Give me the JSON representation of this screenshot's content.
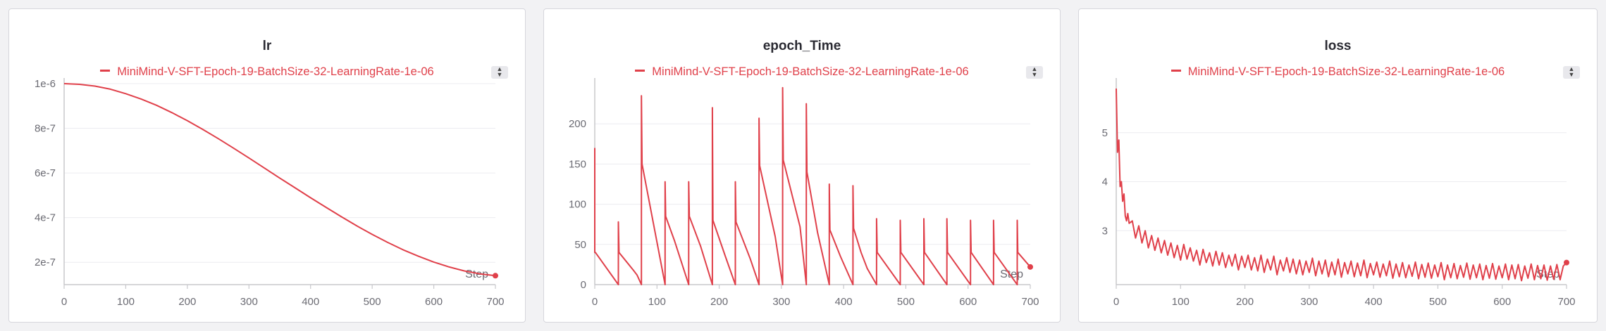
{
  "colors": {
    "series": "#e0404a",
    "grid": "#ececf0",
    "axis": "#c8c8cc",
    "tick_text": "#6b6b73",
    "background": "#f2f2f4"
  },
  "icons": {
    "legend_toggle": "sort-up-down-icon"
  },
  "chart_data": [
    {
      "type": "line",
      "title": "lr",
      "legend": "MiniMind-V-SFT-Epoch-19-BatchSize-32-LearningRate-1e-06",
      "xlabel": "Step",
      "xlim": [
        0,
        700
      ],
      "ylim": [
        1e-07,
        1e-06
      ],
      "xticks": [
        0,
        100,
        200,
        300,
        400,
        500,
        600,
        700
      ],
      "yticks": [
        2e-07,
        4e-07,
        6e-07,
        8e-07,
        1e-06
      ],
      "ytick_labels": [
        "2e-7",
        "4e-7",
        "6e-7",
        "8e-7",
        "1e-6"
      ],
      "series": [
        {
          "name": "MiniMind-V-SFT-Epoch-19-BatchSize-32-LearningRate-1e-06",
          "x": [
            0,
            25,
            50,
            75,
            100,
            125,
            150,
            175,
            200,
            225,
            250,
            275,
            300,
            325,
            350,
            375,
            400,
            425,
            450,
            475,
            500,
            525,
            550,
            575,
            600,
            625,
            650,
            675,
            700
          ],
          "y": [
            1e-06,
            9.97e-07,
            9.89e-07,
            9.75e-07,
            9.55e-07,
            9.31e-07,
            9.03e-07,
            8.7e-07,
            8.34e-07,
            7.95e-07,
            7.54e-07,
            7.11e-07,
            6.67e-07,
            6.22e-07,
            5.77e-07,
            5.33e-07,
            4.89e-07,
            4.46e-07,
            4.04e-07,
            3.63e-07,
            3.25e-07,
            2.89e-07,
            2.56e-07,
            2.27e-07,
            2.01e-07,
            1.79e-07,
            1.61e-07,
            1.48e-07,
            1.4e-07
          ]
        }
      ]
    },
    {
      "type": "line",
      "title": "epoch_Time",
      "legend": "MiniMind-V-SFT-Epoch-19-BatchSize-32-LearningRate-1e-06",
      "xlabel": "Step",
      "xlim": [
        0,
        700
      ],
      "ylim": [
        0,
        250
      ],
      "xticks": [
        0,
        100,
        200,
        300,
        400,
        500,
        600,
        700
      ],
      "yticks": [
        0,
        50,
        100,
        150,
        200
      ],
      "ytick_labels": [
        "0",
        "50",
        "100",
        "150",
        "200"
      ],
      "series": [
        {
          "name": "MiniMind-V-SFT-Epoch-19-BatchSize-32-LearningRate-1e-06",
          "x": [
            0,
            0,
            1,
            38,
            38,
            39,
            62,
            68,
            75,
            75,
            76,
            113,
            113,
            114,
            128,
            151,
            151,
            152,
            170,
            189,
            189,
            190,
            210,
            226,
            226,
            227,
            250,
            264,
            264,
            265,
            290,
            302,
            302,
            303,
            330,
            340,
            340,
            341,
            358,
            377,
            377,
            378,
            395,
            415,
            415,
            416,
            428,
            438,
            453,
            453,
            454,
            491,
            491,
            492,
            529,
            529,
            530,
            566,
            566,
            567,
            604,
            604,
            605,
            641,
            641,
            642,
            679,
            679,
            680,
            700
          ],
          "y": [
            170,
            40,
            40,
            0,
            78,
            40,
            18,
            12,
            0,
            235,
            150,
            0,
            128,
            85,
            55,
            0,
            128,
            85,
            48,
            0,
            220,
            80,
            35,
            0,
            128,
            78,
            32,
            0,
            207,
            148,
            60,
            0,
            245,
            155,
            72,
            0,
            225,
            140,
            65,
            0,
            125,
            68,
            35,
            0,
            123,
            70,
            40,
            20,
            0,
            82,
            40,
            0,
            80,
            40,
            0,
            82,
            40,
            0,
            82,
            40,
            0,
            80,
            40,
            0,
            80,
            40,
            0,
            80,
            40,
            22
          ]
        }
      ]
    },
    {
      "type": "line",
      "title": "loss",
      "legend": "MiniMind-V-SFT-Epoch-19-BatchSize-32-LearningRate-1e-06",
      "xlabel": "Step",
      "xlim": [
        0,
        700
      ],
      "ylim": [
        1.9,
        6.0
      ],
      "xticks": [
        0,
        100,
        200,
        300,
        400,
        500,
        600,
        700
      ],
      "yticks": [
        3,
        4,
        5
      ],
      "ytick_labels": [
        "3",
        "4",
        "5"
      ],
      "series": [
        {
          "name": "MiniMind-V-SFT-Epoch-19-BatchSize-32-LearningRate-1e-06",
          "x": [
            0,
            2,
            4,
            6,
            8,
            10,
            12,
            14,
            16,
            18,
            20,
            25,
            30,
            35,
            40,
            45,
            50,
            55,
            60,
            65,
            70,
            75,
            80,
            85,
            90,
            95,
            100,
            105,
            110,
            115,
            120,
            125,
            130,
            135,
            140,
            145,
            150,
            155,
            160,
            165,
            170,
            175,
            180,
            185,
            190,
            195,
            200,
            205,
            210,
            215,
            220,
            225,
            230,
            235,
            240,
            245,
            250,
            255,
            260,
            265,
            270,
            275,
            280,
            285,
            290,
            295,
            300,
            305,
            310,
            315,
            320,
            325,
            330,
            335,
            340,
            345,
            350,
            355,
            360,
            365,
            370,
            375,
            380,
            385,
            390,
            395,
            400,
            405,
            410,
            415,
            420,
            425,
            430,
            435,
            440,
            445,
            450,
            455,
            460,
            465,
            470,
            475,
            480,
            485,
            490,
            495,
            500,
            505,
            510,
            515,
            520,
            525,
            530,
            535,
            540,
            545,
            550,
            555,
            560,
            565,
            570,
            575,
            580,
            585,
            590,
            595,
            600,
            605,
            610,
            615,
            620,
            625,
            630,
            635,
            640,
            645,
            650,
            655,
            660,
            665,
            670,
            675,
            680,
            685,
            690,
            695,
            700
          ],
          "y": [
            5.9,
            4.6,
            4.85,
            3.9,
            4.0,
            3.6,
            3.75,
            3.3,
            3.2,
            3.35,
            3.15,
            3.2,
            2.85,
            3.1,
            2.75,
            3.0,
            2.65,
            2.9,
            2.6,
            2.85,
            2.55,
            2.8,
            2.5,
            2.75,
            2.45,
            2.7,
            2.4,
            2.72,
            2.42,
            2.65,
            2.38,
            2.6,
            2.3,
            2.62,
            2.35,
            2.55,
            2.28,
            2.58,
            2.3,
            2.55,
            2.25,
            2.5,
            2.28,
            2.52,
            2.2,
            2.48,
            2.25,
            2.5,
            2.2,
            2.45,
            2.18,
            2.5,
            2.15,
            2.42,
            2.2,
            2.48,
            2.1,
            2.4,
            2.18,
            2.45,
            2.15,
            2.42,
            2.12,
            2.4,
            2.1,
            2.38,
            2.15,
            2.44,
            2.08,
            2.38,
            2.12,
            2.4,
            2.06,
            2.36,
            2.1,
            2.42,
            2.05,
            2.35,
            2.12,
            2.38,
            2.06,
            2.34,
            2.08,
            2.4,
            2.04,
            2.33,
            2.1,
            2.36,
            2.05,
            2.32,
            2.08,
            2.38,
            2.03,
            2.32,
            2.06,
            2.35,
            2.04,
            2.3,
            2.07,
            2.36,
            2.02,
            2.31,
            2.05,
            2.34,
            2.03,
            2.3,
            2.06,
            2.35,
            2.0,
            2.3,
            2.04,
            2.33,
            2.02,
            2.29,
            2.05,
            2.34,
            2.01,
            2.3,
            2.04,
            2.32,
            2.0,
            2.29,
            2.03,
            2.33,
            2.01,
            2.28,
            2.04,
            2.32,
            2.0,
            2.3,
            2.02,
            2.31,
            1.98,
            2.28,
            2.03,
            2.32,
            2.0,
            2.29,
            2.02,
            2.3,
            1.99,
            2.28,
            2.01,
            2.31,
            2.0,
            2.28,
            2.35
          ]
        }
      ]
    }
  ]
}
